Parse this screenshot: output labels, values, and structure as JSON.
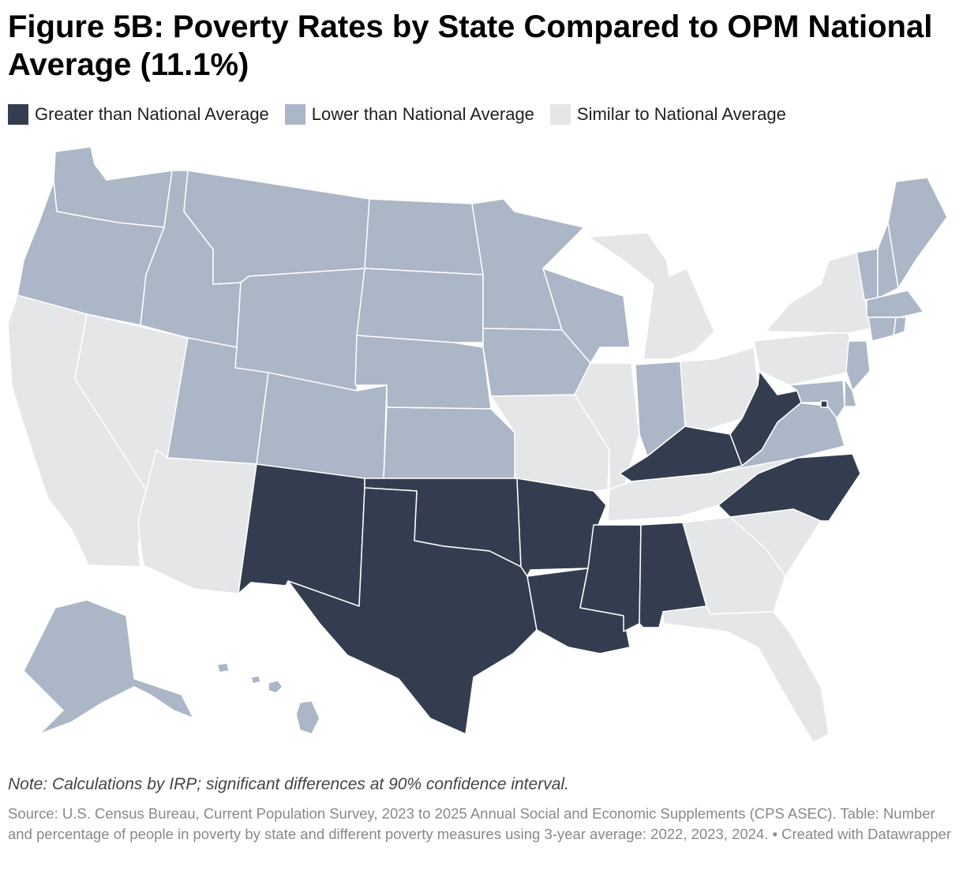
{
  "title": "Figure 5B: Poverty Rates by State Compared to OPM National Average (11.1%)",
  "legend": [
    {
      "key": "greater",
      "label": "Greater than National Average",
      "color": "#333d4f"
    },
    {
      "key": "lower",
      "label": "Lower than National Average",
      "color": "#abb6c7"
    },
    {
      "key": "similar",
      "label": "Similar to National Average",
      "color": "#e5e6e8"
    }
  ],
  "states": {
    "WA": "lower",
    "OR": "lower",
    "CA": "similar",
    "NV": "similar",
    "ID": "lower",
    "MT": "lower",
    "WY": "lower",
    "UT": "lower",
    "AZ": "similar",
    "CO": "lower",
    "NM": "greater",
    "ND": "lower",
    "SD": "lower",
    "NE": "lower",
    "KS": "lower",
    "OK": "greater",
    "TX": "greater",
    "MN": "lower",
    "IA": "lower",
    "MO": "similar",
    "AR": "greater",
    "LA": "greater",
    "WI": "lower",
    "IL": "similar",
    "MI": "similar",
    "IN": "lower",
    "OH": "similar",
    "KY": "greater",
    "TN": "similar",
    "MS": "greater",
    "AL": "greater",
    "GA": "similar",
    "FL": "similar",
    "SC": "similar",
    "NC": "greater",
    "VA": "lower",
    "WV": "greater",
    "PA": "similar",
    "NY": "similar",
    "VT": "lower",
    "NH": "lower",
    "ME": "lower",
    "MA": "lower",
    "RI": "lower",
    "CT": "lower",
    "NJ": "lower",
    "DE": "lower",
    "MD": "lower",
    "DC": "greater",
    "AK": "lower",
    "HI": "lower"
  },
  "note": "Note: Calculations by IRP; significant differences at 90% confidence interval.",
  "source": "Source: U.S. Census Bureau, Current Population Survey, 2023 to 2025 Annual Social and Economic Supplements (CPS ASEC). Table: Number and percentage of people in poverty by state and different poverty measures using 3-year average: 2022, 2023, 2024.",
  "credit": "• Created with Datawrapper"
}
